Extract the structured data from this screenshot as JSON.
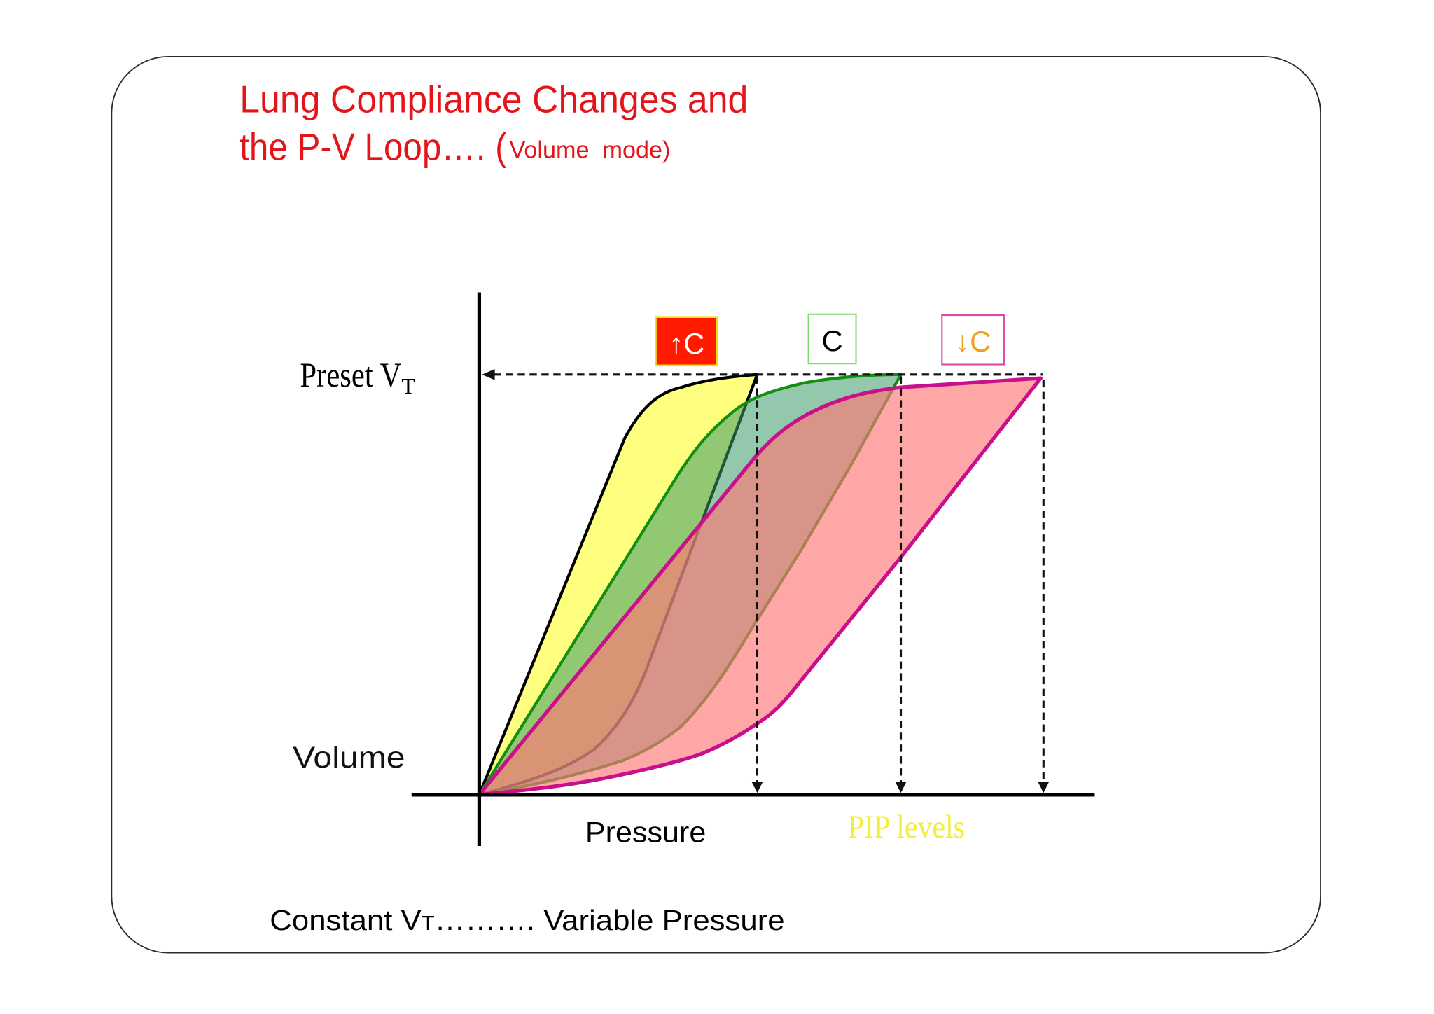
{
  "slide": {
    "title_line1": "Lung Compliance Changes and",
    "title_line2": "the P-V Loop…. (",
    "title_mode": "Volume  mode)",
    "title_color": "#e3151a",
    "footer": {
      "part1": "Constant V",
      "subscript": "T",
      "part2": "………. Variable Pressure"
    }
  },
  "diagram": {
    "preset_label": {
      "text": "Preset V",
      "subscript": "T"
    },
    "y_axis_label": "Volume",
    "x_axis_label": "Pressure",
    "pip_label": "PIP levels",
    "pip_label_color": "#f2ee3a",
    "loops": [
      {
        "label": "↑C",
        "outline_color": "#000000",
        "fill_color": "#ffff7f",
        "box_fill": "#ff1a00",
        "box_border": "#f2e600",
        "label_color": "#ffffff"
      },
      {
        "label": "C",
        "outline_color": "#109010",
        "fill_color": "#3a9a6a",
        "box_fill": "#ffffff",
        "box_border": "#7ddc6a",
        "label_color": "#000000"
      },
      {
        "label": "↓C",
        "outline_color": "#c8108c",
        "fill_color": "#ff7878",
        "box_fill": "#ffffff",
        "box_border": "#d94aa8",
        "label_color": "#f0a020"
      }
    ]
  }
}
